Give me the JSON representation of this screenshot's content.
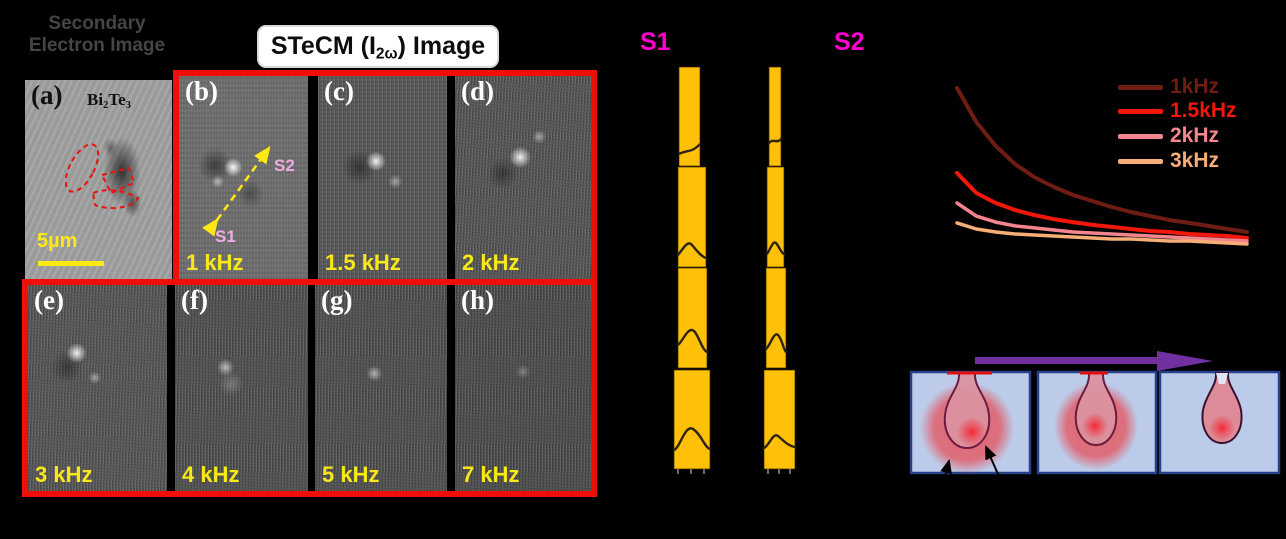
{
  "figure": {
    "left_caption": {
      "line1": "Secondary",
      "line2": "Electron Image"
    },
    "stecm_title": {
      "prefix": "STeCM (I",
      "sub": "2ω",
      "suffix": ") Image"
    }
  },
  "panel_a": {
    "letter": "(a)",
    "material": {
      "prefix": "Bi",
      "sub1": "2",
      "mid": "Te",
      "sub2": "3"
    },
    "scalebar_label": "5µm"
  },
  "stecm_panels": [
    {
      "letter": "(b)",
      "freq": "1 kHz"
    },
    {
      "letter": "(c)",
      "freq": "1.5 kHz"
    },
    {
      "letter": "(d)",
      "freq": "2 kHz"
    },
    {
      "letter": "(e)",
      "freq": "3 kHz"
    },
    {
      "letter": "(f)",
      "freq": "4 kHz"
    },
    {
      "letter": "(g)",
      "freq": "5 kHz"
    },
    {
      "letter": "(h)",
      "freq": "7 kHz"
    }
  ],
  "line_markers": {
    "s1": "S1",
    "s2": "S2"
  },
  "profile_columns": {
    "s1_title": "S1",
    "s2_title": "S2",
    "bar_color": "#ffc008"
  },
  "chart_data": {
    "type": "line",
    "title": "",
    "xlabel": "",
    "ylabel": "",
    "note": "no axes, tick labels or gridlines are visible; curves are 1/x-like decays read off in relative units",
    "legend_position": "upper right",
    "x_rel": [
      0,
      1,
      2,
      3,
      4,
      5,
      6,
      7,
      8,
      9,
      10,
      11,
      12,
      13,
      14,
      15
    ],
    "series": [
      {
        "label": "1kHz",
        "color": "#6f1d13",
        "width": 4,
        "y_rel": [
          1.0,
          0.797,
          0.654,
          0.546,
          0.468,
          0.409,
          0.361,
          0.325,
          0.289,
          0.259,
          0.235,
          0.211,
          0.194,
          0.176,
          0.158,
          0.14
        ]
      },
      {
        "label": "1.5kHz",
        "color": "#f2170b",
        "width": 4,
        "y_rel": [
          0.492,
          0.373,
          0.313,
          0.271,
          0.241,
          0.217,
          0.199,
          0.182,
          0.17,
          0.158,
          0.146,
          0.14,
          0.128,
          0.122,
          0.116,
          0.104
        ]
      },
      {
        "label": "2kHz",
        "color": "#f4858e",
        "width": 3.5,
        "y_rel": [
          0.313,
          0.235,
          0.199,
          0.176,
          0.164,
          0.152,
          0.14,
          0.134,
          0.128,
          0.122,
          0.116,
          0.11,
          0.104,
          0.098,
          0.092,
          0.086
        ]
      },
      {
        "label": "3kHz",
        "color": "#f7ad76",
        "width": 3.5,
        "y_rel": [
          0.194,
          0.158,
          0.14,
          0.128,
          0.122,
          0.116,
          0.11,
          0.104,
          0.098,
          0.098,
          0.092,
          0.086,
          0.086,
          0.08,
          0.074,
          0.068
        ]
      }
    ]
  },
  "colors": {
    "panel_border_red": "#ee0f08",
    "freq_label_yellow": "#f8e817",
    "profile_gold": "#ffc008",
    "profile_title_magenta": "#ff00cf",
    "inline_marker_plum": "#eeace2",
    "scalebar_yellow": "#ffe912",
    "scan_arrow_purple": "#7030a0",
    "box_fill_blue": "#bccbe9",
    "box_border_blue": "#27408b"
  }
}
